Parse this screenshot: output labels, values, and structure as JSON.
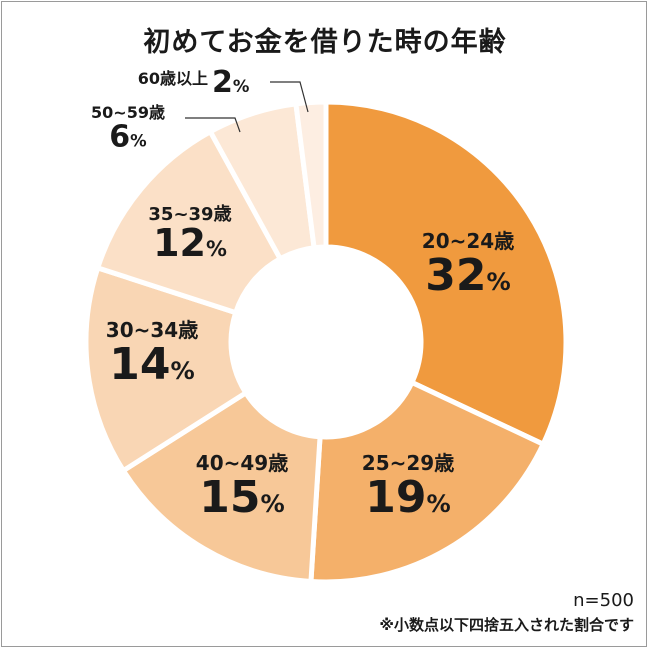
{
  "title": "初めてお金を借りた時の年齢",
  "n_label": "n=500",
  "footnote": "※小数点以下四捨五入された割合です",
  "chart_data": {
    "type": "pie",
    "donut": true,
    "title": "初めてお金を借りた時の年齢",
    "slices": [
      {
        "label": "20~24歳",
        "value": 32,
        "pct": "32",
        "color": "#f09a3e"
      },
      {
        "label": "25~29歳",
        "value": 19,
        "pct": "19",
        "color": "#f4b06a"
      },
      {
        "label": "40~49歳",
        "value": 15,
        "pct": "15",
        "color": "#f7c898"
      },
      {
        "label": "30~34歳",
        "value": 14,
        "pct": "14",
        "color": "#f9d6b4"
      },
      {
        "label": "35~39歳",
        "value": 12,
        "pct": "12",
        "color": "#fbe0c7"
      },
      {
        "label": "50~59歳",
        "value": 6,
        "pct": "6",
        "color": "#fce8d6"
      },
      {
        "label": "60歳以上",
        "value": 2,
        "pct": "2",
        "color": "#fdeee2"
      }
    ],
    "percent_sign": "%"
  }
}
